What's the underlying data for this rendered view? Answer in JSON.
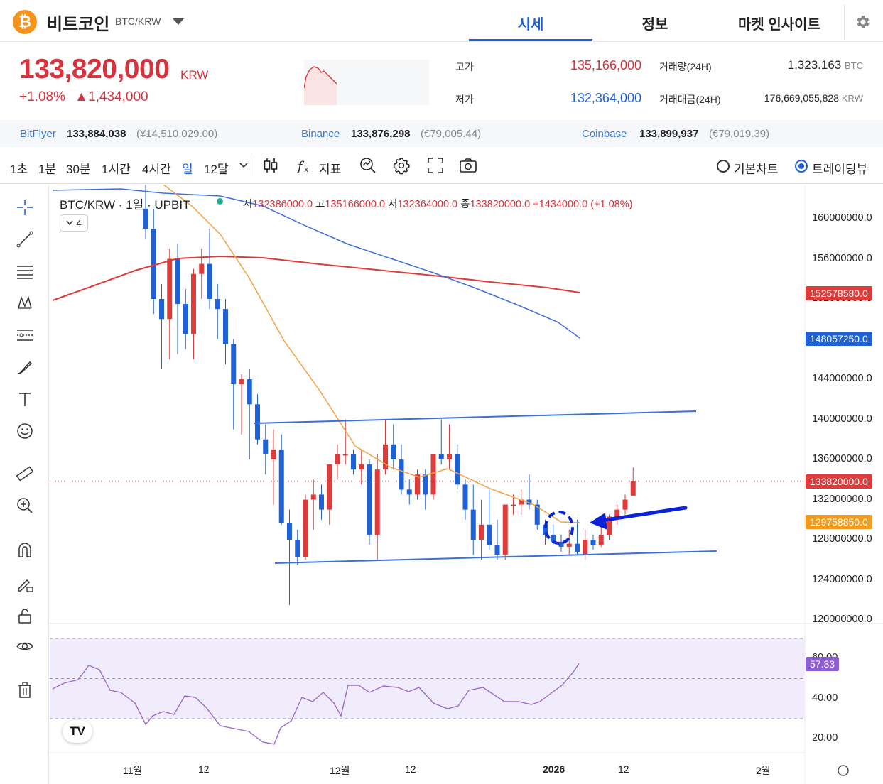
{
  "header": {
    "coin_symbol": "₿",
    "coin_name": "비트코인",
    "pair": "BTC/KRW",
    "tabs": [
      {
        "label": "시세",
        "active": true
      },
      {
        "label": "정보",
        "active": false
      },
      {
        "label": "마켓 인사이트",
        "active": false
      }
    ]
  },
  "price": {
    "current": "133,820,000",
    "unit": "KRW",
    "change_pct": "+1.08%",
    "change_abs": "▲1,434,000",
    "high_label": "고가",
    "high": "135,166,000",
    "low_label": "저가",
    "low": "132,364,000",
    "volume_label": "거래량(24H)",
    "volume": "1,323.163",
    "volume_unit": "BTC",
    "value_label": "거래대금(24H)",
    "value": "176,669,055,828",
    "value_unit": "KRW"
  },
  "exchanges": [
    {
      "name": "BitFlyer",
      "price": "133,884,038",
      "sub": "(¥14,510,029.00)"
    },
    {
      "name": "Binance",
      "price": "133,876,298",
      "sub": "(€79,005.44)"
    },
    {
      "name": "Coinbase",
      "price": "133,899,937",
      "sub": "(€79,019.39)"
    }
  ],
  "toolbar": {
    "intervals": [
      "1초",
      "1분",
      "30분",
      "1시간",
      "4시간",
      "일",
      "12달"
    ],
    "active_interval": "일",
    "indicator_label": "지표",
    "chart_modes": [
      {
        "label": "기본차트",
        "selected": false
      },
      {
        "label": "트레이딩뷰",
        "selected": true
      }
    ]
  },
  "side_tools": [
    "crosshair-icon",
    "trendline-icon",
    "fib-icon",
    "pattern-icon",
    "forecast-icon",
    "brush-icon",
    "text-icon",
    "emoji-icon",
    "ruler-icon",
    "zoom-in-icon",
    "magnet-icon",
    "lock-pencil-icon",
    "unlock-icon",
    "eye-icon",
    "trash-icon"
  ],
  "chart": {
    "title": "BTC/KRW · 1일 · UPBIT",
    "ohlc": {
      "o_label": "시",
      "o": "132386000.0",
      "h_label": "고",
      "h": "135166000.0",
      "l_label": "저",
      "l": "132364000.0",
      "c_label": "종",
      "c": "133820000.0",
      "change": "+1434000.0 (+1.08%)"
    },
    "indicators_count": "4",
    "y_labels": [
      "160000000.0",
      "156000000.0",
      "152000000.0",
      "148000000.0",
      "144000000.0",
      "140000000.0",
      "136000000.0",
      "132000000.0",
      "128000000.0",
      "124000000.0",
      "120000000.0"
    ],
    "price_tags": [
      {
        "value": "152578580.0",
        "color": "#e03b3b"
      },
      {
        "value": "148057250.0",
        "color": "#1f62d8"
      },
      {
        "value": "133820000.0",
        "color": "#e03b3b"
      },
      {
        "value": "129758850.0",
        "color": "#f19a1b"
      }
    ],
    "rsi_labels": [
      "60.00",
      "40.00",
      "20.00"
    ],
    "rsi_tag": "57.33",
    "x_labels": [
      "11월",
      "12",
      "12월",
      "12",
      "2026",
      "12",
      "2월"
    ],
    "colors": {
      "up": "#e03b3b",
      "down": "#1f62d8",
      "ma_short": "#f5a142",
      "ma_mid": "#3d6fe0",
      "ma_long": "#e03b3b",
      "rsi": "#9c6bd1"
    }
  }
}
